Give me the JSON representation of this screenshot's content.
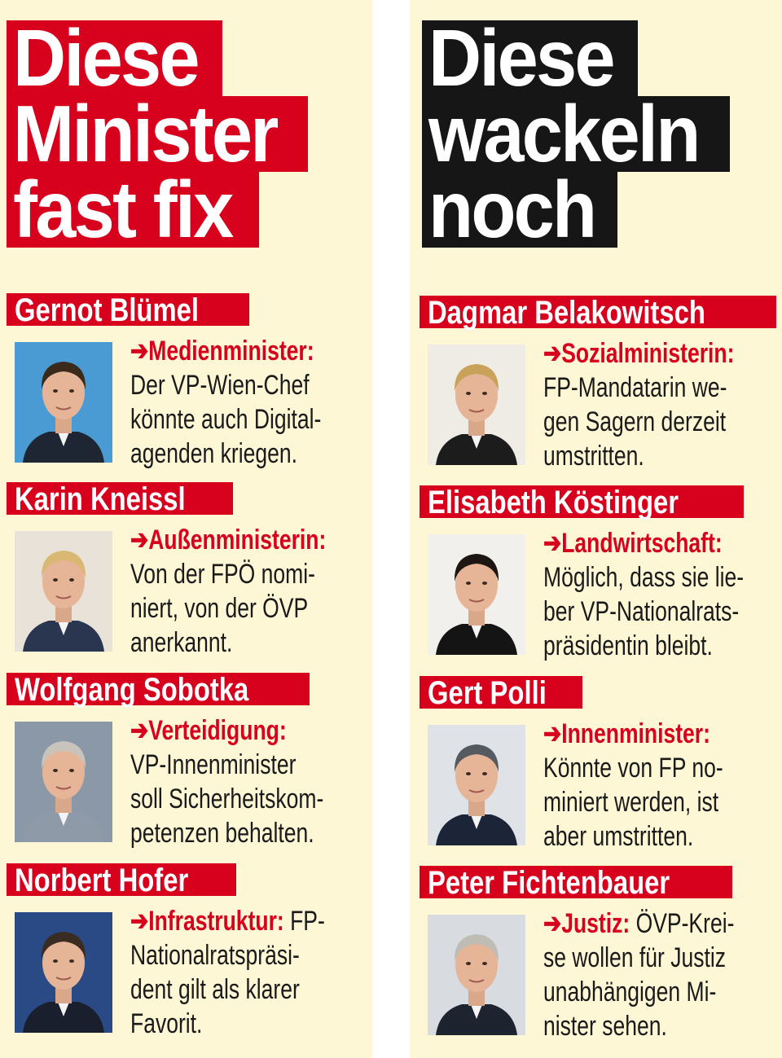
{
  "colors": {
    "red": "#d7001d",
    "black": "#161616",
    "cream": "#fdf7d6"
  },
  "columns": [
    {
      "headline_color": "#d7001d",
      "headline": [
        "Diese",
        "Minister",
        "fast fix"
      ],
      "entries": [
        {
          "name": "Gernot Blümel",
          "role": "Medienminister:",
          "first_line_rest": "",
          "lines": [
            "Der VP-Wien-Chef",
            "könnte auch Digital-",
            "agenden kriegen."
          ],
          "photo_bg": "#4a9ad4",
          "hair": "#3a2a1c",
          "suit": "#1e2533"
        },
        {
          "name": "Karin Kneissl",
          "role": "Außenministerin:",
          "first_line_rest": "",
          "lines": [
            "Von der FPÖ nomi-",
            "niert, von der ÖVP",
            "anerkannt."
          ],
          "photo_bg": "#e8e2d8",
          "hair": "#d9b873",
          "suit": "#2a3550"
        },
        {
          "name": "Wolfgang Sobotka",
          "role": "Verteidigung:",
          "first_line_rest": "",
          "lines": [
            "VP-Innenminister",
            "soll Sicherheitskom-",
            "petenzen behalten."
          ],
          "photo_bg": "#8a98a8",
          "hair": "#c8c4bc",
          "suit": "#8e9aa8"
        },
        {
          "name": "Norbert Hofer",
          "role": "Infrastruktur:",
          "first_line_rest": " FP-",
          "lines": [
            "Nationalratspräsi-",
            "dent gilt als klarer",
            "Favorit."
          ],
          "photo_bg": "#2a4a86",
          "hair": "#3a2c22",
          "suit": "#1a1f2e"
        }
      ]
    },
    {
      "headline_color": "#161616",
      "headline": [
        "Diese",
        "wackeln",
        "noch"
      ],
      "entries": [
        {
          "name": "Dagmar Belakowitsch",
          "role": "Sozialministerin:",
          "first_line_rest": "",
          "lines": [
            "FP-Mandatarin we-",
            "gen Sagern derzeit",
            "umstritten."
          ],
          "photo_bg": "#efece6",
          "hair": "#c9a25a",
          "suit": "#1c1c1c"
        },
        {
          "name": "Elisabeth Köstinger",
          "role": "Landwirtschaft:",
          "first_line_rest": "",
          "lines": [
            "Möglich, dass sie lie-",
            "ber VP-Nationalrats-",
            "präsidentin bleibt."
          ],
          "photo_bg": "#f2f0ec",
          "hair": "#1e1612",
          "suit": "#141414"
        },
        {
          "name": "Gert Polli",
          "role": "Innenminister:",
          "first_line_rest": "",
          "lines": [
            "Könnte von FP no-",
            "miniert werden, ist",
            "aber umstritten."
          ],
          "photo_bg": "#dfe3e8",
          "hair": "#555a60",
          "suit": "#1c2538"
        },
        {
          "name": "Peter Fichtenbauer",
          "role": "Justiz:",
          "first_line_rest": " ÖVP-Krei-",
          "lines": [
            "se wollen für Justiz",
            "unabhängigen Mi-",
            "nister sehen."
          ],
          "photo_bg": "#d8dce0",
          "hair": "#bfbcb6",
          "suit": "#1e2330"
        }
      ]
    }
  ]
}
